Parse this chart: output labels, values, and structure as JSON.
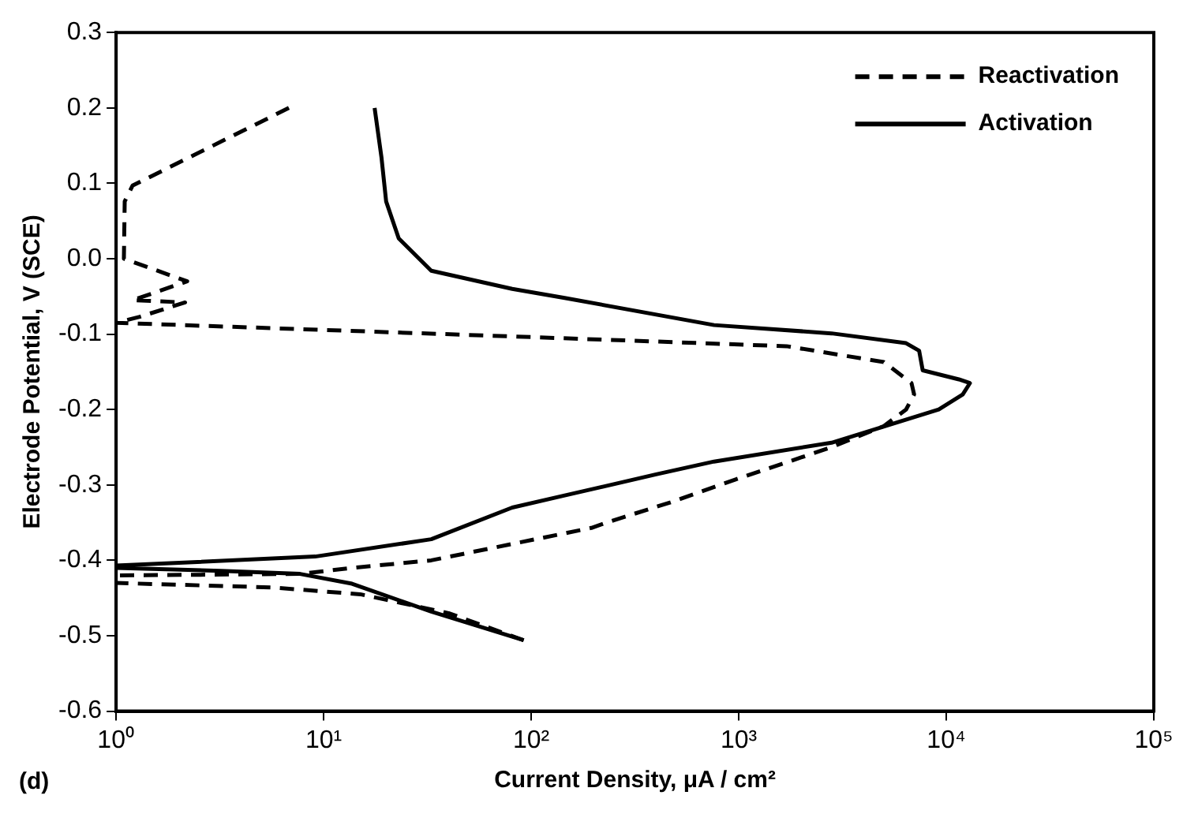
{
  "chart_data": {
    "type": "line",
    "xlabel": "Current Density, μA / cm²",
    "ylabel": "Electrode Potential, V (SCE)",
    "log": "x",
    "grid": false,
    "legend": "top right",
    "marker": "none",
    "xlim": [
      1,
      100000
    ],
    "xticks": [
      {
        "value": 1,
        "label": "10⁰"
      },
      {
        "value": 10,
        "label": "10¹"
      },
      {
        "value": 100,
        "label": "10²"
      },
      {
        "value": 1000,
        "label": "10³"
      },
      {
        "value": 10000,
        "label": "10⁴"
      },
      {
        "value": 100000,
        "label": "10⁵"
      }
    ],
    "ylim": [
      -0.6,
      0.3
    ],
    "yticks": [
      -0.6,
      -0.5,
      -0.4,
      -0.3,
      -0.2,
      -0.1,
      {
        "value": 0,
        "label": "0.0"
      },
      0.1,
      0.2,
      0.3
    ],
    "annotations": [
      "(d)"
    ],
    "series": [
      {
        "name": "Reactivation",
        "color": "#000000",
        "line_style": "dashed",
        "x": [
          6.8,
          1.2,
          1.1,
          1.09,
          2.2,
          1.2,
          2.15,
          1.3,
          1.0,
          80,
          1700,
          5000,
          6800,
          7000,
          6400,
          5000,
          2800,
          960,
          470,
          230,
          195,
          33,
          13.7,
          7.7,
          1.0,
          1.0,
          5.7,
          15,
          40,
          92
        ],
        "values": [
          0.2,
          0.097,
          0.076,
          0.0,
          -0.03,
          -0.055,
          -0.058,
          -0.077,
          -0.085,
          -0.103,
          -0.116,
          -0.137,
          -0.165,
          -0.18,
          -0.2,
          -0.222,
          -0.25,
          -0.293,
          -0.323,
          -0.35,
          -0.357,
          -0.4,
          -0.41,
          -0.418,
          -0.42,
          -0.43,
          -0.436,
          -0.445,
          -0.47,
          -0.506
        ]
      },
      {
        "name": "Activation",
        "color": "#000000",
        "line_style": "solid",
        "x": [
          92,
          33,
          13.7,
          7.7,
          3.2,
          1.0,
          1.0,
          9.1,
          33,
          81,
          145,
          400,
          760,
          2800,
          9200,
          12000,
          13000,
          11500,
          7700,
          7400,
          6400,
          2800,
          760,
          145,
          81,
          33,
          23,
          20,
          19,
          17.6
        ],
        "values": [
          -0.506,
          -0.468,
          -0.431,
          -0.418,
          -0.414,
          -0.41,
          -0.407,
          -0.395,
          -0.372,
          -0.33,
          -0.314,
          -0.286,
          -0.269,
          -0.244,
          -0.2,
          -0.18,
          -0.165,
          -0.16,
          -0.148,
          -0.122,
          -0.112,
          -0.099,
          -0.088,
          -0.052,
          -0.04,
          -0.016,
          0.027,
          0.076,
          0.134,
          0.2
        ]
      }
    ]
  }
}
